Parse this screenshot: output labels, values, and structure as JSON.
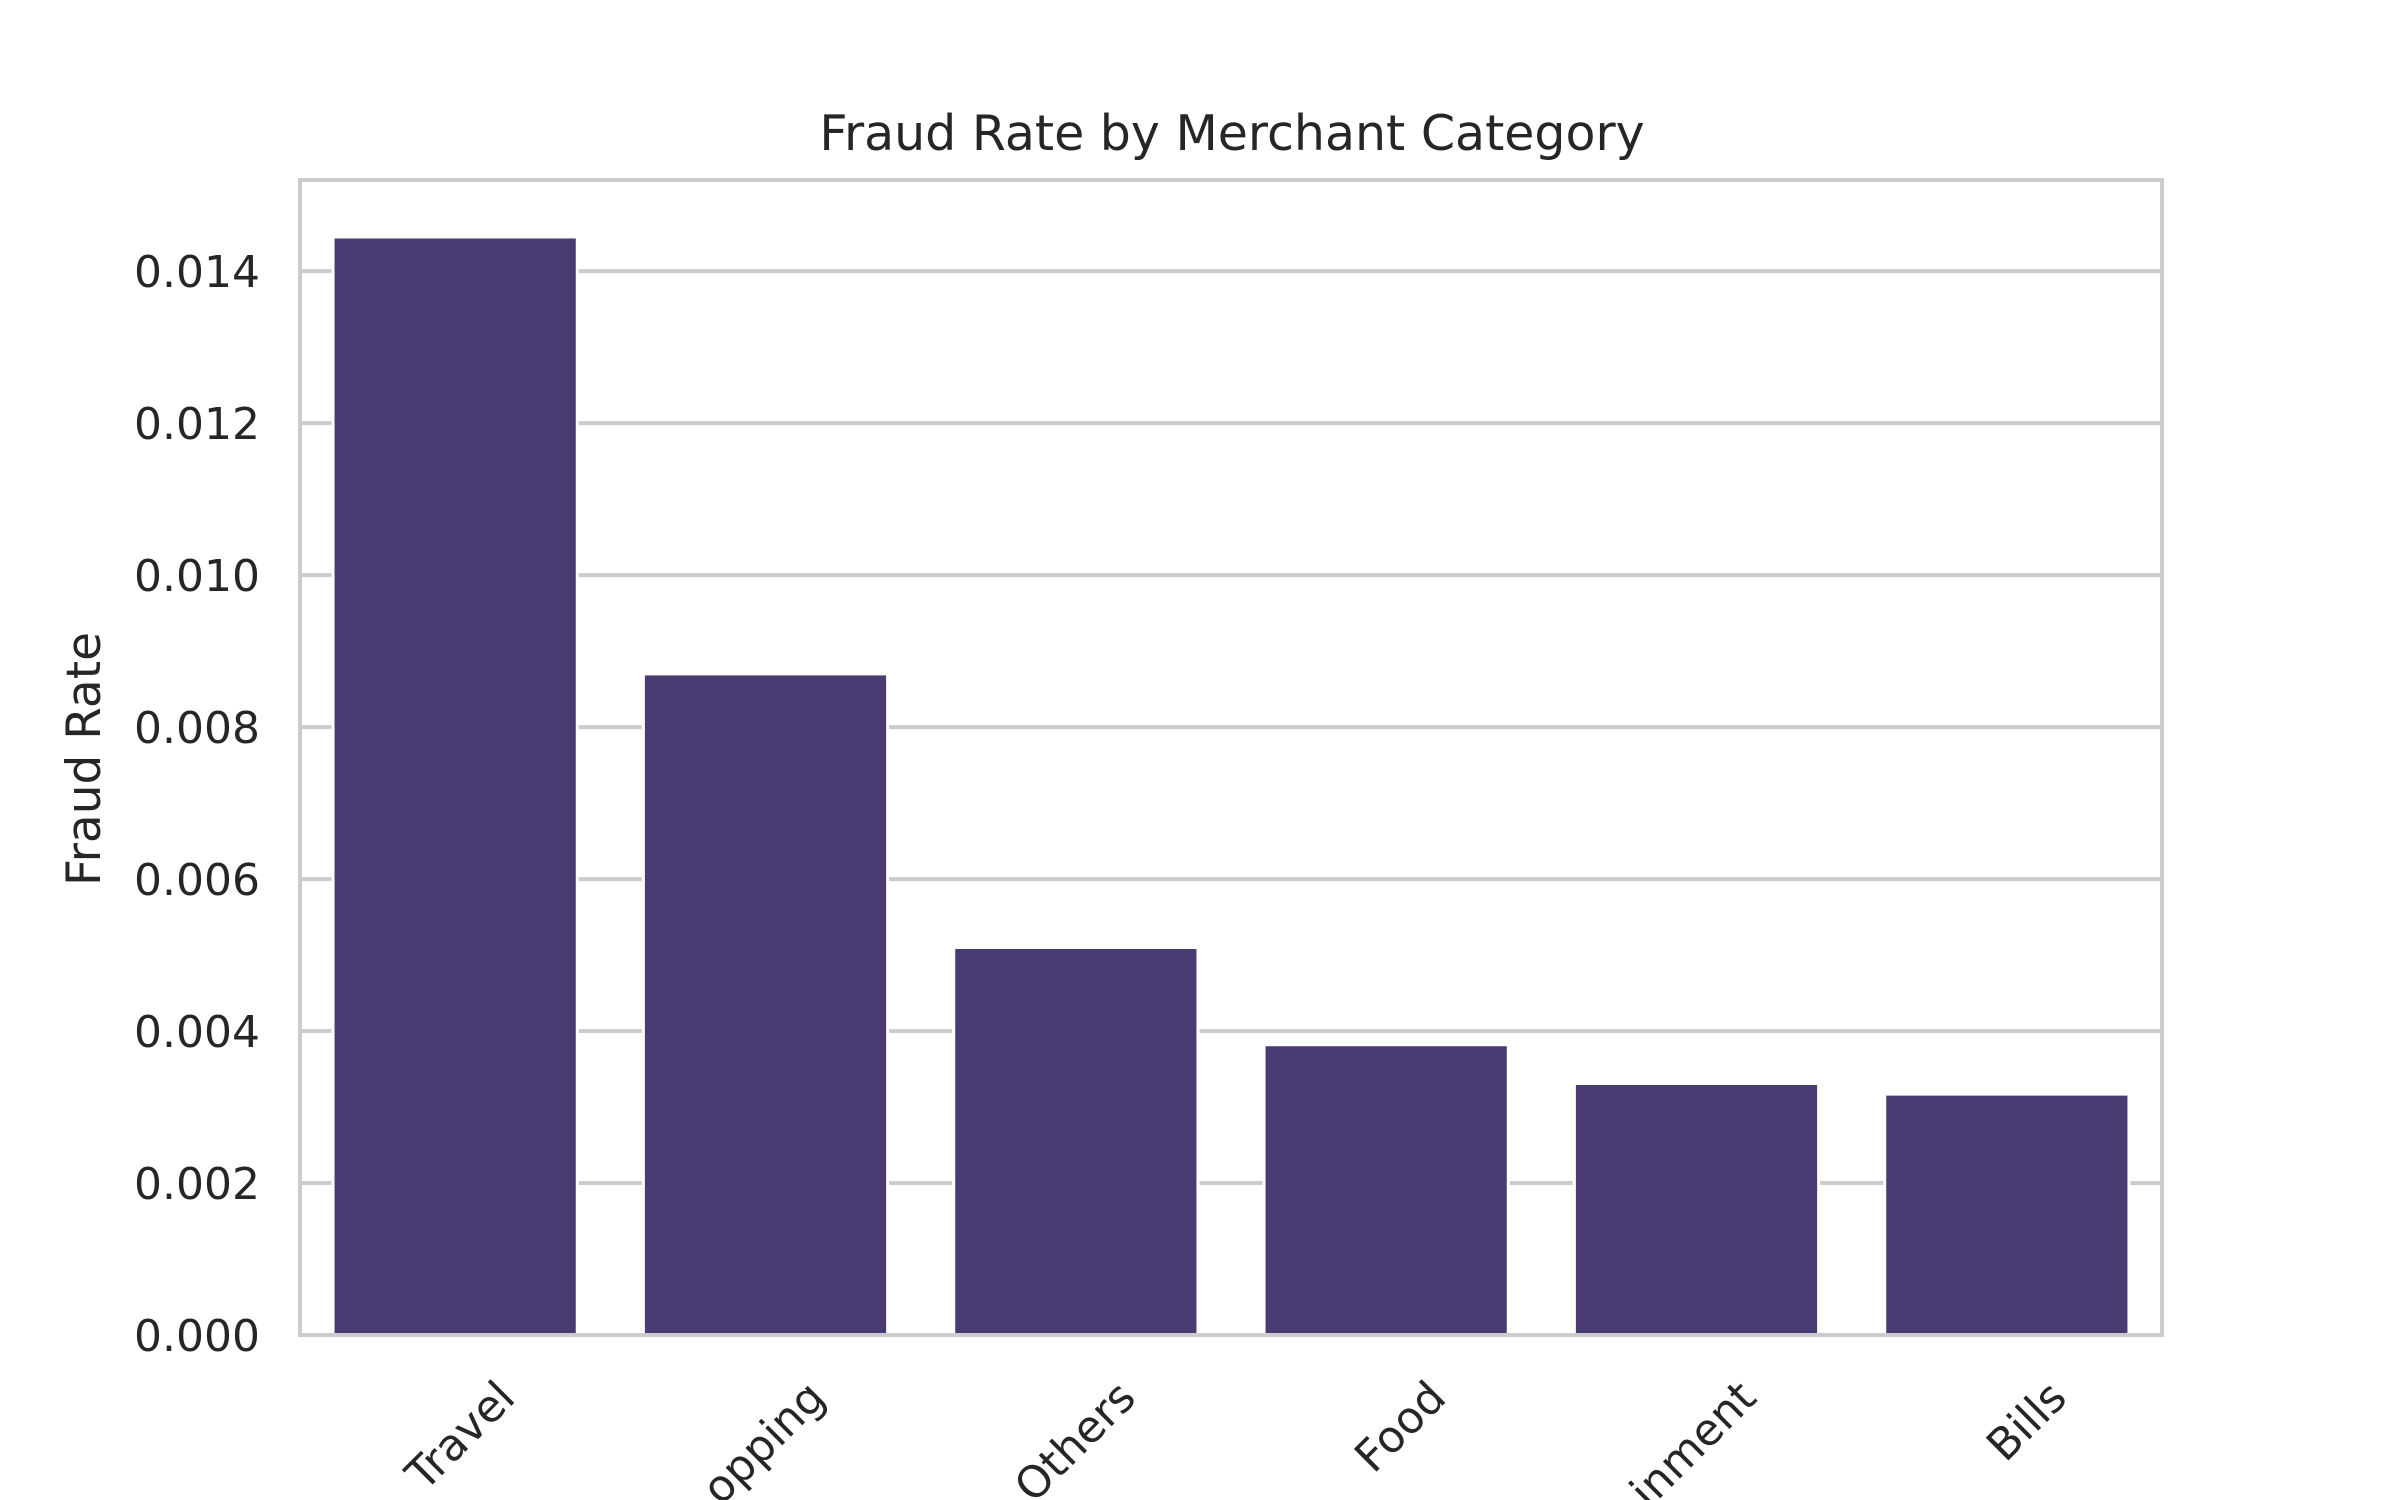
{
  "chart_data": {
    "type": "bar",
    "title": "Fraud Rate by Merchant Category",
    "xlabel": "",
    "ylabel": "Fraud Rate",
    "categories": [
      "Travel",
      "Shopping",
      "Others",
      "Food",
      "Entertainment",
      "Bills"
    ],
    "visible_tick_labels": [
      "Travel",
      "opping",
      "Others",
      "Food",
      "inment",
      "Bills"
    ],
    "values": [
      0.01445,
      0.0087,
      0.0051,
      0.00382,
      0.00331,
      0.00317
    ],
    "ylim": [
      0,
      0.0152
    ],
    "yticks": [
      0.0,
      0.002,
      0.004,
      0.006,
      0.008,
      0.01,
      0.012,
      0.014
    ],
    "ytick_labels": [
      "0.000",
      "0.002",
      "0.004",
      "0.006",
      "0.008",
      "0.010",
      "0.012",
      "0.014"
    ],
    "grid": "y",
    "legend": "none",
    "bar_color": "#4a3b73",
    "grid_color": "#cccccc",
    "frame_color": "#cccccc",
    "text_color": "#262626"
  }
}
